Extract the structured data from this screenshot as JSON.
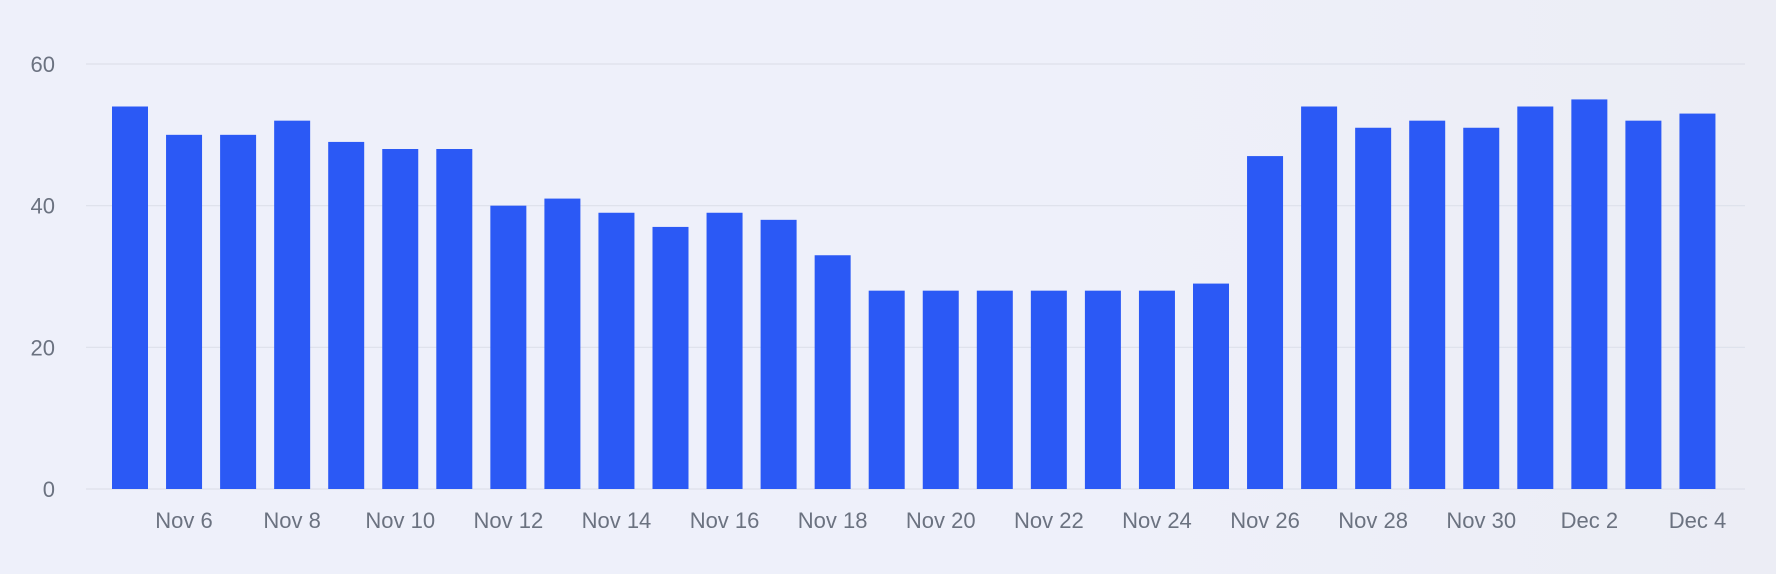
{
  "chart_data": {
    "type": "bar",
    "title": "",
    "xlabel": "",
    "ylabel": "",
    "ylim": [
      0,
      60
    ],
    "yticks": [
      0,
      20,
      40,
      60
    ],
    "grid": true,
    "legend": "none",
    "colors": {
      "bar": "#2b59f5",
      "grid": "#dde0ea",
      "tick_text": "#6b7280"
    },
    "categories": [
      "Nov 5",
      "Nov 6",
      "Nov 7",
      "Nov 8",
      "Nov 9",
      "Nov 10",
      "Nov 11",
      "Nov 12",
      "Nov 13",
      "Nov 14",
      "Nov 15",
      "Nov 16",
      "Nov 17",
      "Nov 18",
      "Nov 19",
      "Nov 20",
      "Nov 21",
      "Nov 22",
      "Nov 23",
      "Nov 24",
      "Nov 25",
      "Nov 26",
      "Nov 27",
      "Nov 28",
      "Nov 29",
      "Nov 30",
      "Dec 1",
      "Dec 2",
      "Dec 3",
      "Dec 4"
    ],
    "x_tick_labels": [
      "Nov 6",
      "Nov 8",
      "Nov 10",
      "Nov 12",
      "Nov 14",
      "Nov 16",
      "Nov 18",
      "Nov 20",
      "Nov 22",
      "Nov 24",
      "Nov 26",
      "Nov 28",
      "Nov 30",
      "Dec 2",
      "Dec 4"
    ],
    "values": [
      54,
      50,
      50,
      52,
      49,
      48,
      48,
      40,
      41,
      39,
      37,
      39,
      38,
      33,
      28,
      28,
      28,
      28,
      28,
      28,
      29,
      47,
      54,
      51,
      52,
      51,
      54,
      55,
      52,
      53
    ]
  }
}
